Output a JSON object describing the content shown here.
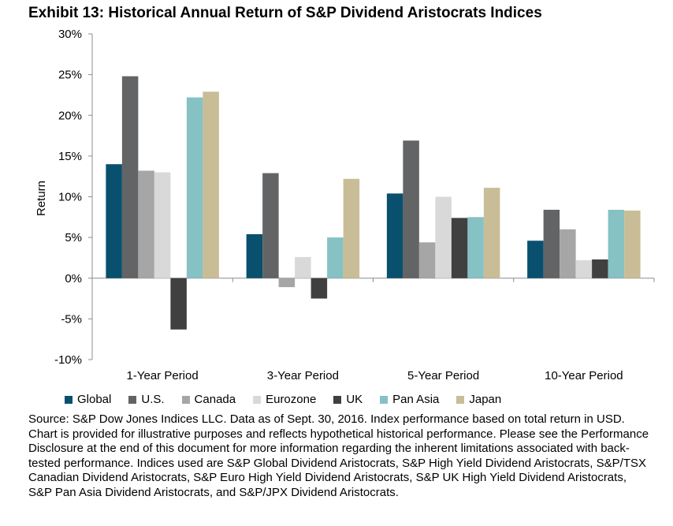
{
  "title": "Exhibit 13: Historical Annual Return of S&P Dividend Aristocrats Indices",
  "source": "Source: S&P Dow Jones Indices LLC.  Data as of Sept. 30, 2016.  Index performance based on total return in USD.  Chart is provided for illustrative purposes and reflects hypothetical historical performance.  Please see the Performance Disclosure at the end of this document for more information regarding the inherent limitations associated with back-tested performance.  Indices used are S&P Global Dividend Aristocrats, S&P High Yield Dividend Aristocrats, S&P/TSX Canadian Dividend Aristocrats, S&P Euro High Yield Dividend Aristocrats, S&P UK High Yield Dividend Aristocrats, S&P Pan Asia Dividend Aristocrats, and S&P/JPX Dividend Aristocrats.",
  "chart_data": {
    "type": "bar",
    "title": "Exhibit 13: Historical Annual Return of S&P Dividend Aristocrats Indices",
    "xlabel": "",
    "ylabel": "Return",
    "categories": [
      "1-Year Period",
      "3-Year Period",
      "5-Year Period",
      "10-Year Period"
    ],
    "ylim": [
      -10,
      30
    ],
    "yticks": [
      -10,
      -5,
      0,
      5,
      10,
      15,
      20,
      25,
      30
    ],
    "ytick_labels": [
      "-10%",
      "-5%",
      "0%",
      "5%",
      "10%",
      "15%",
      "20%",
      "25%",
      "30%"
    ],
    "grid": false,
    "legend_position": "bottom",
    "series": [
      {
        "name": "Global",
        "color": "#08506e",
        "values": [
          14.0,
          5.4,
          10.4,
          4.6
        ]
      },
      {
        "name": "U.S.",
        "color": "#636466",
        "values": [
          24.8,
          12.9,
          16.9,
          8.4
        ]
      },
      {
        "name": "Canada",
        "color": "#a6a6a6",
        "values": [
          13.2,
          -1.1,
          4.4,
          6.0
        ]
      },
      {
        "name": "Eurozone",
        "color": "#d9d9d9",
        "values": [
          13.0,
          2.6,
          10.0,
          2.2
        ]
      },
      {
        "name": "UK",
        "color": "#404041",
        "values": [
          -6.3,
          -2.5,
          7.4,
          2.3
        ]
      },
      {
        "name": "Pan Asia",
        "color": "#86c1c4",
        "values": [
          22.2,
          5.0,
          7.5,
          8.4
        ]
      },
      {
        "name": "Japan",
        "color": "#c8bd96",
        "values": [
          22.9,
          12.2,
          11.1,
          8.3
        ]
      }
    ]
  }
}
